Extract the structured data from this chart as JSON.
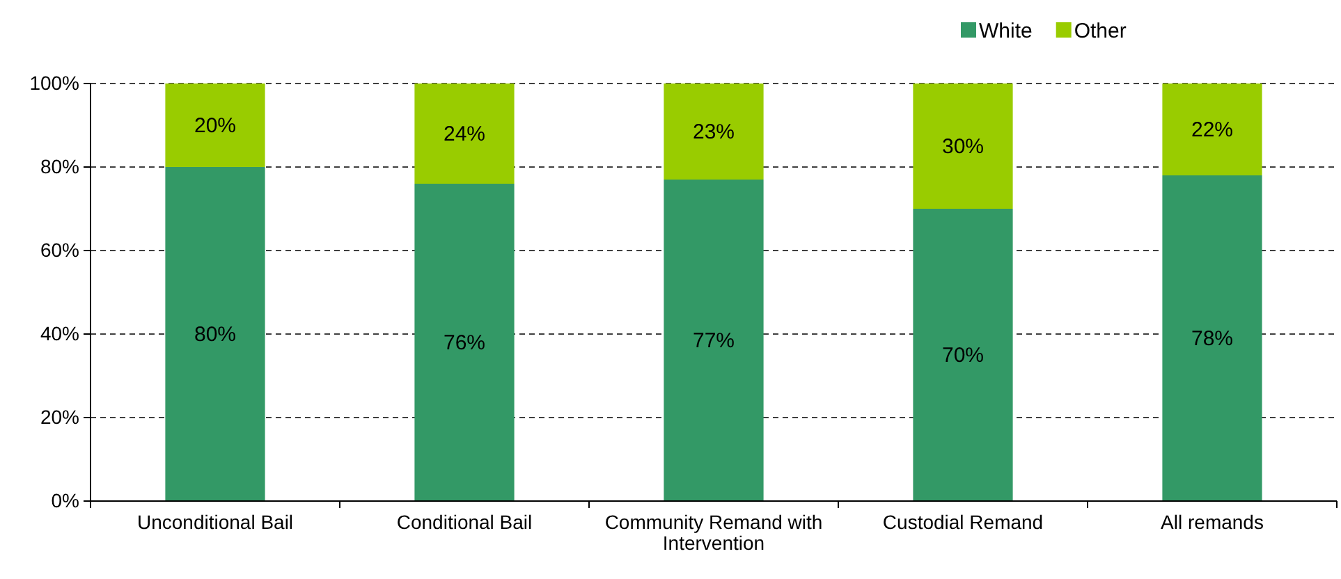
{
  "chart_data": {
    "type": "bar",
    "stacked": true,
    "categories": [
      "Unconditional Bail",
      "Conditional Bail",
      "Community Remand with Intervention",
      "Custodial Remand",
      "All remands"
    ],
    "series": [
      {
        "name": "White",
        "color": "#339966",
        "values": [
          80,
          76,
          77,
          70,
          78
        ],
        "value_labels": [
          "80%",
          "76%",
          "77%",
          "70%",
          "78%"
        ]
      },
      {
        "name": "Other",
        "color": "#99cc00",
        "values": [
          20,
          24,
          23,
          30,
          22
        ],
        "value_labels": [
          "20%",
          "24%",
          "23%",
          "30%",
          "22%"
        ]
      }
    ],
    "ylim": [
      0,
      100
    ],
    "yticks": [
      {
        "value": 0,
        "label": "0%"
      },
      {
        "value": 20,
        "label": "20%"
      },
      {
        "value": 40,
        "label": "40%"
      },
      {
        "value": 60,
        "label": "60%"
      },
      {
        "value": 80,
        "label": "80%"
      },
      {
        "value": 100,
        "label": "100%"
      }
    ],
    "grid": "y",
    "legend": "top right"
  }
}
